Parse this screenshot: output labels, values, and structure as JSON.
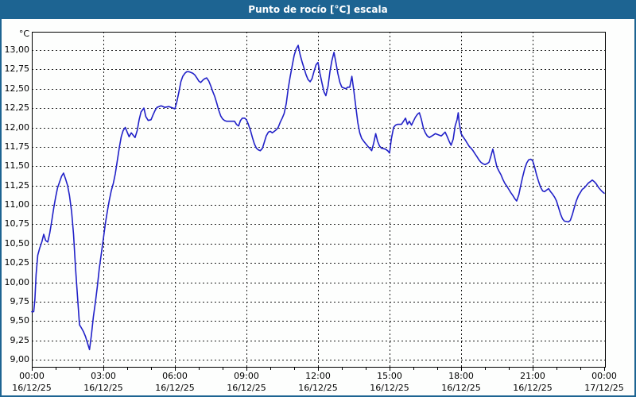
{
  "window": {
    "title": "Punto de rocío [°C] escala"
  },
  "colors": {
    "title_bar": "#1d6492",
    "frame_border": "#1d6492",
    "title_text": "#ffffff",
    "plot_border": "#000000",
    "grid": "#1c1c1c",
    "axis_text": "#000000",
    "line": "#2121c8",
    "background": "#fdfefd"
  },
  "chart_data": {
    "type": "line",
    "title": "Punto de rocío [°C] escala",
    "ylabel": "°C",
    "xlabel": "",
    "ylim": [
      9.0,
      13.0
    ],
    "y_tick_step": 0.25,
    "grid": "dashed",
    "legend_position": "none",
    "y_ticks": [
      {
        "value": 13.0,
        "label": "13,00"
      },
      {
        "value": 12.75,
        "label": "12,75"
      },
      {
        "value": 12.5,
        "label": "12,50"
      },
      {
        "value": 12.25,
        "label": "12,25"
      },
      {
        "value": 12.0,
        "label": "12,00"
      },
      {
        "value": 11.75,
        "label": "11,75"
      },
      {
        "value": 11.5,
        "label": "11,50"
      },
      {
        "value": 11.25,
        "label": "11,25"
      },
      {
        "value": 11.0,
        "label": "11,00"
      },
      {
        "value": 10.75,
        "label": "10,75"
      },
      {
        "value": 10.5,
        "label": "10,50"
      },
      {
        "value": 10.25,
        "label": "10,25"
      },
      {
        "value": 10.0,
        "label": "10,00"
      },
      {
        "value": 9.75,
        "label": "9,75"
      },
      {
        "value": 9.5,
        "label": "9,50"
      },
      {
        "value": 9.25,
        "label": "9,25"
      },
      {
        "value": 9.0,
        "label": "9,00"
      }
    ],
    "x_ticks": [
      {
        "hour": 0,
        "time": "00:00",
        "date": "16/12/25"
      },
      {
        "hour": 3,
        "time": "03:00",
        "date": "16/12/25"
      },
      {
        "hour": 6,
        "time": "06:00",
        "date": "16/12/25"
      },
      {
        "hour": 9,
        "time": "09:00",
        "date": "16/12/25"
      },
      {
        "hour": 12,
        "time": "12:00",
        "date": "16/12/25"
      },
      {
        "hour": 15,
        "time": "15:00",
        "date": "16/12/25"
      },
      {
        "hour": 18,
        "time": "18:00",
        "date": "16/12/25"
      },
      {
        "hour": 21,
        "time": "21:00",
        "date": "16/12/25"
      },
      {
        "hour": 24,
        "time": "00:00",
        "date": "17/12/25"
      }
    ],
    "series": [
      {
        "name": "Punto de rocío",
        "color": "#2121c8",
        "points": [
          [
            0,
            9.62
          ],
          [
            0.08,
            9.62
          ],
          [
            0.13,
            9.78
          ],
          [
            0.18,
            10.1
          ],
          [
            0.25,
            10.35
          ],
          [
            0.33,
            10.44
          ],
          [
            0.42,
            10.52
          ],
          [
            0.5,
            10.62
          ],
          [
            0.58,
            10.54
          ],
          [
            0.67,
            10.52
          ],
          [
            0.75,
            10.63
          ],
          [
            0.83,
            10.78
          ],
          [
            0.92,
            10.96
          ],
          [
            1,
            11.1
          ],
          [
            1.08,
            11.22
          ],
          [
            1.17,
            11.3
          ],
          [
            1.25,
            11.37
          ],
          [
            1.33,
            11.41
          ],
          [
            1.42,
            11.33
          ],
          [
            1.5,
            11.25
          ],
          [
            1.58,
            11.12
          ],
          [
            1.67,
            10.91
          ],
          [
            1.75,
            10.62
          ],
          [
            1.83,
            10.2
          ],
          [
            1.92,
            9.8
          ],
          [
            2,
            9.45
          ],
          [
            2.08,
            9.41
          ],
          [
            2.17,
            9.36
          ],
          [
            2.25,
            9.3
          ],
          [
            2.33,
            9.22
          ],
          [
            2.42,
            9.13
          ],
          [
            2.5,
            9.32
          ],
          [
            2.58,
            9.55
          ],
          [
            2.67,
            9.75
          ],
          [
            2.75,
            9.95
          ],
          [
            2.83,
            10.18
          ],
          [
            2.92,
            10.38
          ],
          [
            3,
            10.56
          ],
          [
            3.08,
            10.75
          ],
          [
            3.17,
            10.92
          ],
          [
            3.25,
            11.06
          ],
          [
            3.33,
            11.18
          ],
          [
            3.42,
            11.28
          ],
          [
            3.5,
            11.4
          ],
          [
            3.58,
            11.56
          ],
          [
            3.67,
            11.74
          ],
          [
            3.75,
            11.88
          ],
          [
            3.83,
            11.96
          ],
          [
            3.92,
            12
          ],
          [
            4,
            11.94
          ],
          [
            4.08,
            11.88
          ],
          [
            4.17,
            11.93
          ],
          [
            4.25,
            11.9
          ],
          [
            4.33,
            11.87
          ],
          [
            4.42,
            11.96
          ],
          [
            4.5,
            12.1
          ],
          [
            4.58,
            12.2
          ],
          [
            4.7,
            12.25
          ],
          [
            4.78,
            12.14
          ],
          [
            4.88,
            12.09
          ],
          [
            5,
            12.1
          ],
          [
            5.08,
            12.16
          ],
          [
            5.17,
            12.22
          ],
          [
            5.25,
            12.26
          ],
          [
            5.42,
            12.28
          ],
          [
            5.58,
            12.26
          ],
          [
            5.75,
            12.27
          ],
          [
            5.92,
            12.25
          ],
          [
            6,
            12.24
          ],
          [
            6.08,
            12.33
          ],
          [
            6.17,
            12.46
          ],
          [
            6.25,
            12.59
          ],
          [
            6.33,
            12.66
          ],
          [
            6.42,
            12.7
          ],
          [
            6.5,
            12.72
          ],
          [
            6.58,
            12.72
          ],
          [
            6.67,
            12.71
          ],
          [
            6.75,
            12.7
          ],
          [
            6.83,
            12.68
          ],
          [
            6.92,
            12.64
          ],
          [
            7,
            12.6
          ],
          [
            7.08,
            12.58
          ],
          [
            7.17,
            12.61
          ],
          [
            7.25,
            12.63
          ],
          [
            7.33,
            12.64
          ],
          [
            7.42,
            12.6
          ],
          [
            7.5,
            12.54
          ],
          [
            7.58,
            12.47
          ],
          [
            7.67,
            12.4
          ],
          [
            7.75,
            12.32
          ],
          [
            7.83,
            12.23
          ],
          [
            7.92,
            12.15
          ],
          [
            8,
            12.11
          ],
          [
            8.08,
            12.09
          ],
          [
            8.17,
            12.08
          ],
          [
            8.33,
            12.08
          ],
          [
            8.5,
            12.08
          ],
          [
            8.58,
            12.04
          ],
          [
            8.67,
            12.02
          ],
          [
            8.75,
            12.09
          ],
          [
            8.83,
            12.12
          ],
          [
            8.92,
            12.12
          ],
          [
            9,
            12.1
          ],
          [
            9.08,
            12.04
          ],
          [
            9.17,
            11.96
          ],
          [
            9.25,
            11.87
          ],
          [
            9.33,
            11.79
          ],
          [
            9.42,
            11.73
          ],
          [
            9.5,
            11.71
          ],
          [
            9.58,
            11.7
          ],
          [
            9.67,
            11.73
          ],
          [
            9.75,
            11.81
          ],
          [
            9.83,
            11.89
          ],
          [
            9.92,
            11.94
          ],
          [
            10,
            11.95
          ],
          [
            10.08,
            11.93
          ],
          [
            10.17,
            11.95
          ],
          [
            10.25,
            11.97
          ],
          [
            10.33,
            12
          ],
          [
            10.42,
            12.07
          ],
          [
            10.5,
            12.12
          ],
          [
            10.58,
            12.18
          ],
          [
            10.67,
            12.31
          ],
          [
            10.75,
            12.5
          ],
          [
            10.83,
            12.65
          ],
          [
            10.92,
            12.8
          ],
          [
            11,
            12.93
          ],
          [
            11.08,
            13.01
          ],
          [
            11.17,
            13.06
          ],
          [
            11.25,
            12.94
          ],
          [
            11.33,
            12.85
          ],
          [
            11.42,
            12.76
          ],
          [
            11.5,
            12.68
          ],
          [
            11.58,
            12.62
          ],
          [
            11.67,
            12.59
          ],
          [
            11.75,
            12.63
          ],
          [
            11.83,
            12.72
          ],
          [
            11.92,
            12.81
          ],
          [
            12,
            12.84
          ],
          [
            12.08,
            12.7
          ],
          [
            12.17,
            12.57
          ],
          [
            12.25,
            12.46
          ],
          [
            12.33,
            12.41
          ],
          [
            12.42,
            12.53
          ],
          [
            12.5,
            12.72
          ],
          [
            12.58,
            12.86
          ],
          [
            12.67,
            12.97
          ],
          [
            12.75,
            12.84
          ],
          [
            12.83,
            12.7
          ],
          [
            12.92,
            12.58
          ],
          [
            13,
            12.52
          ],
          [
            13.08,
            12.51
          ],
          [
            13.17,
            12.5
          ],
          [
            13.25,
            12.52
          ],
          [
            13.33,
            12.52
          ],
          [
            13.42,
            12.66
          ],
          [
            13.5,
            12.48
          ],
          [
            13.58,
            12.28
          ],
          [
            13.67,
            12.06
          ],
          [
            13.75,
            11.93
          ],
          [
            13.83,
            11.86
          ],
          [
            13.92,
            11.82
          ],
          [
            14,
            11.79
          ],
          [
            14.08,
            11.76
          ],
          [
            14.17,
            11.73
          ],
          [
            14.25,
            11.7
          ],
          [
            14.33,
            11.79
          ],
          [
            14.42,
            11.92
          ],
          [
            14.5,
            11.82
          ],
          [
            14.58,
            11.76
          ],
          [
            14.67,
            11.73
          ],
          [
            14.83,
            11.72
          ],
          [
            14.92,
            11.7
          ],
          [
            15,
            11.67
          ],
          [
            15.08,
            11.86
          ],
          [
            15.17,
            12
          ],
          [
            15.25,
            12.03
          ],
          [
            15.33,
            12.04
          ],
          [
            15.5,
            12.04
          ],
          [
            15.67,
            12.12
          ],
          [
            15.75,
            12.04
          ],
          [
            15.83,
            12.08
          ],
          [
            15.92,
            12.03
          ],
          [
            16,
            12.08
          ],
          [
            16.08,
            12.13
          ],
          [
            16.17,
            12.17
          ],
          [
            16.25,
            12.19
          ],
          [
            16.33,
            12.11
          ],
          [
            16.42,
            11.99
          ],
          [
            16.5,
            11.93
          ],
          [
            16.58,
            11.89
          ],
          [
            16.67,
            11.87
          ],
          [
            16.83,
            11.9
          ],
          [
            16.92,
            11.92
          ],
          [
            17,
            11.91
          ],
          [
            17.17,
            11.89
          ],
          [
            17.33,
            11.94
          ],
          [
            17.42,
            11.88
          ],
          [
            17.5,
            11.82
          ],
          [
            17.58,
            11.77
          ],
          [
            17.67,
            11.85
          ],
          [
            17.75,
            12.02
          ],
          [
            17.83,
            12.1
          ],
          [
            17.88,
            12.19
          ],
          [
            17.92,
            12.06
          ],
          [
            18,
            11.92
          ],
          [
            18.08,
            11.88
          ],
          [
            18.17,
            11.84
          ],
          [
            18.25,
            11.8
          ],
          [
            18.33,
            11.76
          ],
          [
            18.42,
            11.73
          ],
          [
            18.5,
            11.7
          ],
          [
            18.58,
            11.66
          ],
          [
            18.67,
            11.62
          ],
          [
            18.75,
            11.58
          ],
          [
            18.83,
            11.55
          ],
          [
            18.92,
            11.53
          ],
          [
            19,
            11.52
          ],
          [
            19.08,
            11.53
          ],
          [
            19.17,
            11.55
          ],
          [
            19.25,
            11.63
          ],
          [
            19.33,
            11.72
          ],
          [
            19.42,
            11.6
          ],
          [
            19.5,
            11.49
          ],
          [
            19.58,
            11.44
          ],
          [
            19.67,
            11.39
          ],
          [
            19.75,
            11.33
          ],
          [
            19.83,
            11.28
          ],
          [
            19.92,
            11.24
          ],
          [
            20,
            11.2
          ],
          [
            20.08,
            11.16
          ],
          [
            20.17,
            11.12
          ],
          [
            20.25,
            11.08
          ],
          [
            20.33,
            11.05
          ],
          [
            20.42,
            11.13
          ],
          [
            20.5,
            11.25
          ],
          [
            20.58,
            11.36
          ],
          [
            20.67,
            11.47
          ],
          [
            20.75,
            11.54
          ],
          [
            20.83,
            11.58
          ],
          [
            20.92,
            11.59
          ],
          [
            21,
            11.57
          ],
          [
            21.08,
            11.49
          ],
          [
            21.17,
            11.38
          ],
          [
            21.25,
            11.3
          ],
          [
            21.33,
            11.23
          ],
          [
            21.42,
            11.18
          ],
          [
            21.5,
            11.17
          ],
          [
            21.58,
            11.19
          ],
          [
            21.67,
            11.21
          ],
          [
            21.75,
            11.17
          ],
          [
            21.83,
            11.14
          ],
          [
            21.92,
            11.1
          ],
          [
            22,
            11.05
          ],
          [
            22.08,
            10.97
          ],
          [
            22.17,
            10.88
          ],
          [
            22.25,
            10.82
          ],
          [
            22.33,
            10.79
          ],
          [
            22.5,
            10.78
          ],
          [
            22.58,
            10.8
          ],
          [
            22.67,
            10.88
          ],
          [
            22.75,
            10.97
          ],
          [
            22.83,
            11.05
          ],
          [
            22.92,
            11.12
          ],
          [
            23,
            11.16
          ],
          [
            23.08,
            11.2
          ],
          [
            23.17,
            11.22
          ],
          [
            23.25,
            11.25
          ],
          [
            23.33,
            11.28
          ],
          [
            23.42,
            11.3
          ],
          [
            23.5,
            11.32
          ],
          [
            23.58,
            11.3
          ],
          [
            23.67,
            11.27
          ],
          [
            23.75,
            11.23
          ],
          [
            23.83,
            11.2
          ],
          [
            23.92,
            11.17
          ],
          [
            24,
            11.15
          ]
        ]
      }
    ]
  }
}
